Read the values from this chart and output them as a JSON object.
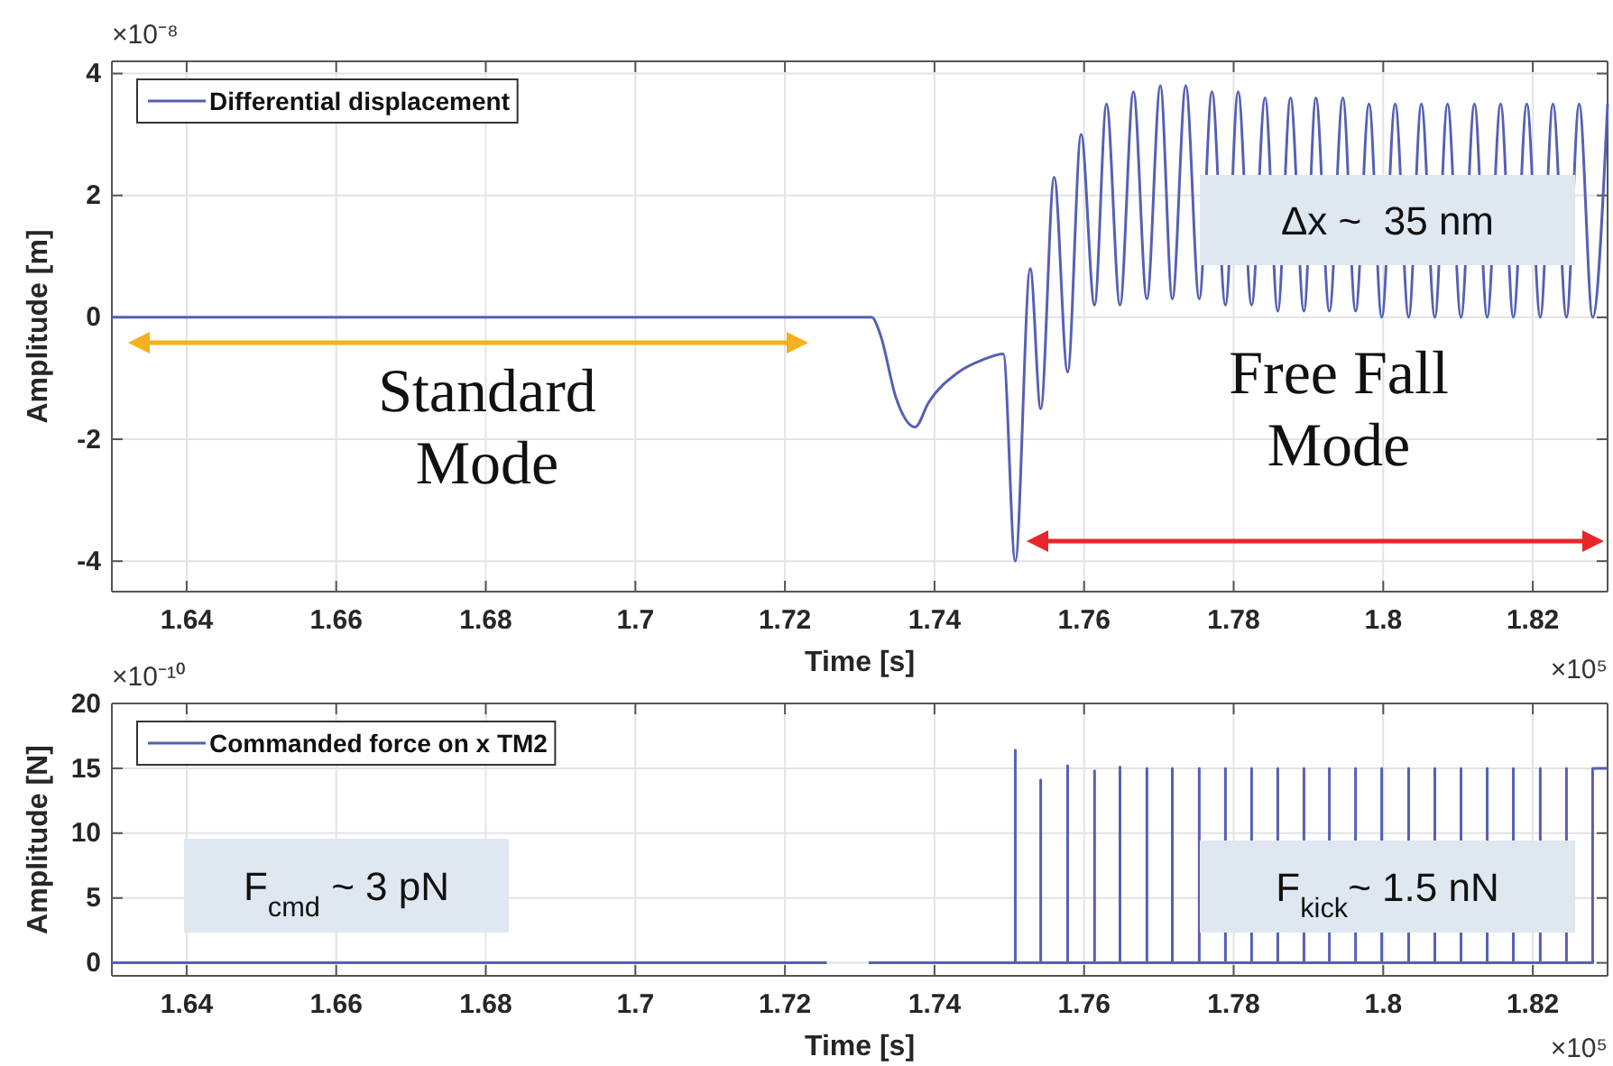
{
  "chart_data": [
    {
      "type": "line",
      "xlabel": "Time  [s]",
      "ylabel": "Amplitude  [m]",
      "xlim": [
        1.63,
        1.83
      ],
      "xticks": [
        1.64,
        1.66,
        1.68,
        1.7,
        1.72,
        1.74,
        1.76,
        1.78,
        1.8,
        1.82
      ],
      "ylim": [
        -4.5,
        4.2
      ],
      "yticks": [
        -4,
        -2,
        0,
        2,
        4
      ],
      "grid": true,
      "legend": "top left",
      "series": [
        {
          "name": "Differential displacement",
          "color": "#5560b4",
          "x": [
            1.63,
            1.7316,
            1.7328,
            1.7348,
            1.7374,
            1.7392,
            1.7432,
            1.7464,
            1.7492,
            1.7508,
            1.7528,
            1.7542,
            1.756,
            1.7578,
            1.7596,
            1.7614,
            1.763,
            1.7648,
            1.7666,
            1.7684,
            1.7702,
            1.7718,
            1.7736,
            1.7754,
            1.7771,
            1.7789,
            1.7806,
            1.7824,
            1.7842,
            1.7859,
            1.7876,
            1.7894,
            1.791,
            1.7928,
            1.7946,
            1.7963,
            1.7981,
            1.7998,
            1.8016,
            1.8034,
            1.8051,
            1.8069,
            1.8086,
            1.8104,
            1.8122,
            1.8139,
            1.8157,
            1.8174,
            1.8192,
            1.821,
            1.8227,
            1.8245,
            1.8262,
            1.828,
            1.83
          ],
          "values": [
            0,
            0,
            -0.3,
            -1.3,
            -1.8,
            -1.4,
            -0.9,
            -0.7,
            -0.6,
            -4.0,
            0.8,
            -1.5,
            2.3,
            -0.9,
            3.0,
            0.2,
            3.5,
            0.2,
            3.7,
            0.3,
            3.8,
            0.3,
            3.8,
            0.3,
            3.7,
            0.2,
            3.7,
            0.2,
            3.6,
            0.1,
            3.6,
            0.1,
            3.6,
            0.1,
            3.6,
            0.1,
            3.5,
            0,
            3.5,
            0,
            3.5,
            0,
            3.5,
            0,
            3.5,
            0,
            3.5,
            0,
            3.5,
            0,
            3.5,
            0,
            3.5,
            0,
            3.5
          ]
        }
      ],
      "annotations": [
        "×10⁻⁸",
        "×10⁵",
        "Standard Mode",
        "Free Fall Mode",
        "Δx ~  35 nm"
      ]
    },
    {
      "type": "line",
      "xlabel": "Time  [s]",
      "ylabel": "Amplitude  [N]",
      "xlim": [
        1.63,
        1.83
      ],
      "xticks": [
        1.64,
        1.66,
        1.68,
        1.7,
        1.72,
        1.74,
        1.76,
        1.78,
        1.8,
        1.82
      ],
      "ylim": [
        -1,
        20
      ],
      "yticks": [
        0,
        5,
        10,
        15,
        20
      ],
      "grid": true,
      "legend": "top left",
      "series": [
        {
          "name": "Commanded force on x TM2",
          "color": "#5560b4",
          "x": [
            1.63,
            1.7256,
            1.728,
            1.7312,
            1.7508,
            1.7508,
            1.7508,
            1.7542,
            1.7542,
            1.7542,
            1.7578,
            1.7578,
            1.7578,
            1.7614,
            1.7614,
            1.7614,
            1.7648,
            1.7648,
            1.7648,
            1.7684,
            1.7684,
            1.7684,
            1.7718,
            1.7718,
            1.7718,
            1.7754,
            1.7754,
            1.7754,
            1.7789,
            1.7789,
            1.7789,
            1.7824,
            1.7824,
            1.7824,
            1.7859,
            1.7859,
            1.7859,
            1.7894,
            1.7894,
            1.7894,
            1.7928,
            1.7928,
            1.7928,
            1.7963,
            1.7963,
            1.7963,
            1.7998,
            1.7998,
            1.7998,
            1.8034,
            1.8034,
            1.8034,
            1.8069,
            1.8069,
            1.8069,
            1.8104,
            1.8104,
            1.8104,
            1.8139,
            1.8139,
            1.8139,
            1.8174,
            1.8174,
            1.8174,
            1.821,
            1.821,
            1.821,
            1.8245,
            1.8245,
            1.8245,
            1.828,
            1.828,
            1.83
          ],
          "values": [
            0,
            0,
            null,
            0,
            0,
            16.4,
            0,
            0,
            14.1,
            0,
            0,
            15.2,
            0,
            0,
            14.8,
            0,
            0,
            15.1,
            0,
            0,
            15,
            0,
            0,
            15,
            0,
            0,
            15,
            0,
            0,
            15,
            0,
            0,
            15,
            0,
            0,
            15,
            0,
            0,
            15,
            0,
            0,
            15,
            0,
            0,
            15,
            0,
            0,
            15,
            0,
            0,
            15,
            0,
            0,
            15,
            0,
            0,
            15,
            0,
            0,
            15,
            0,
            0,
            15,
            0,
            0,
            15,
            0,
            0,
            15,
            0,
            0,
            15,
            15
          ]
        }
      ],
      "annotations": [
        "×10⁻¹⁰",
        "×10⁵",
        "F$_{cmd}$ ~ 3 pN",
        "F$_{kick}$~ 1.5 nN"
      ]
    }
  ]
}
